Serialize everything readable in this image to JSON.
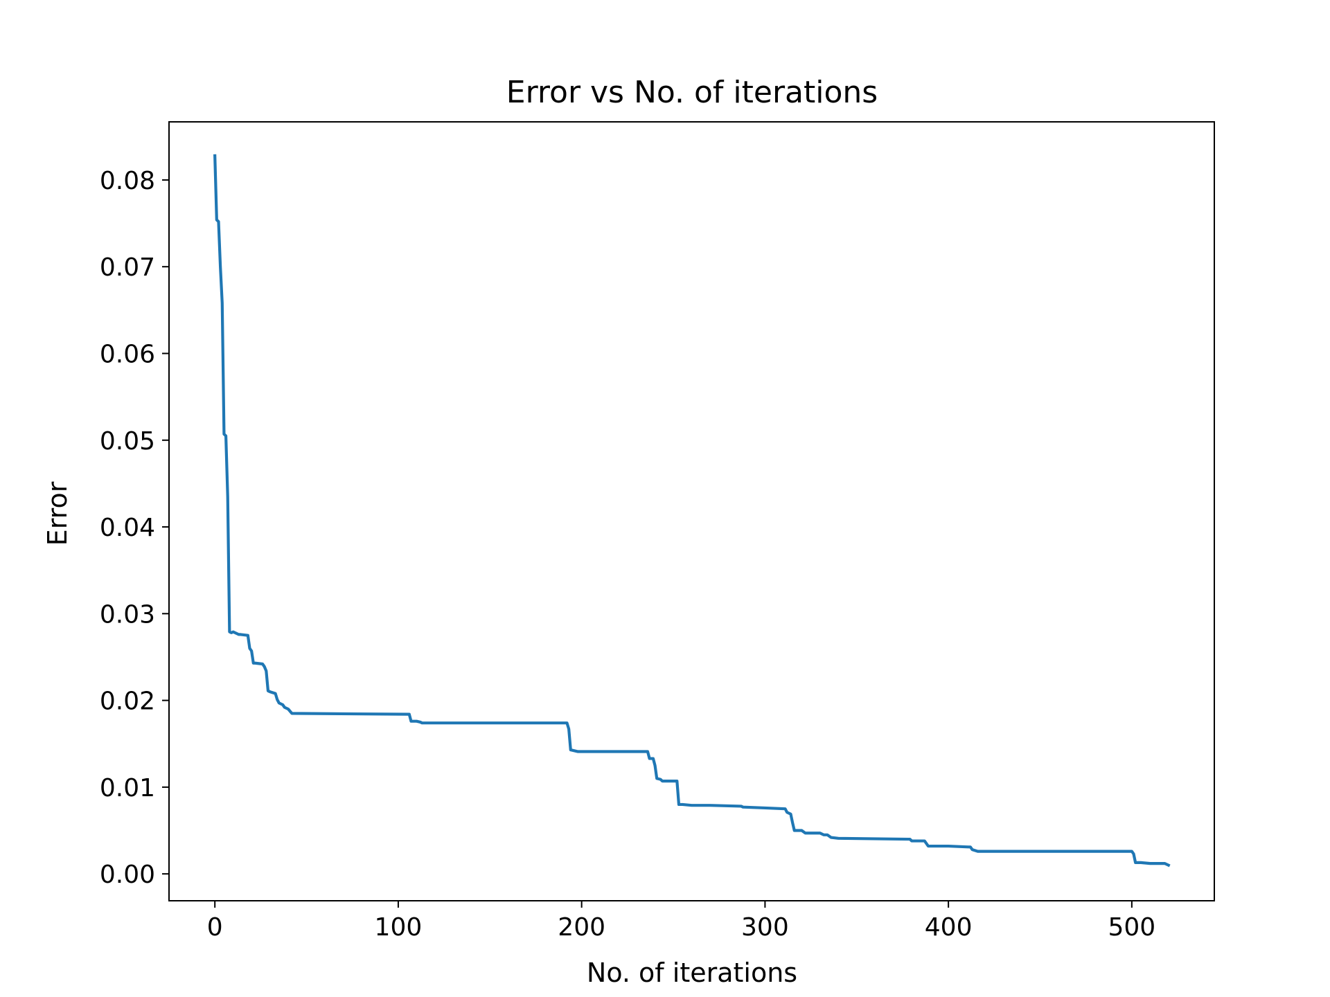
{
  "chart_data": {
    "type": "line",
    "title": "Error vs No. of iterations",
    "xlabel": "No. of iterations",
    "ylabel": "Error",
    "xlim": [
      -25,
      545
    ],
    "ylim": [
      -0.0031,
      0.0867
    ],
    "xticks": [
      0,
      100,
      200,
      300,
      400,
      500
    ],
    "xtick_labels": [
      "0",
      "100",
      "200",
      "300",
      "400",
      "500"
    ],
    "yticks": [
      0.0,
      0.01,
      0.02,
      0.03,
      0.04,
      0.05,
      0.06,
      0.07,
      0.08
    ],
    "ytick_labels": [
      "0.00",
      "0.01",
      "0.02",
      "0.03",
      "0.04",
      "0.05",
      "0.06",
      "0.07",
      "0.08"
    ],
    "grid": false,
    "series": [
      {
        "color": "#1f77b4",
        "x": [
          0,
          1,
          2,
          3,
          4,
          5,
          6,
          7,
          8,
          9,
          10,
          11,
          12,
          13,
          14,
          18,
          19,
          20,
          21,
          22,
          26,
          27,
          28,
          29,
          30,
          33,
          34,
          35,
          37,
          38,
          40,
          42,
          106,
          107,
          110,
          112,
          113,
          150,
          192,
          193,
          194,
          196,
          198,
          236,
          237,
          239,
          240,
          241,
          243,
          244,
          252,
          253,
          255,
          260,
          270,
          287,
          288,
          300,
          311,
          312,
          314,
          315,
          316,
          320,
          322,
          330,
          332,
          334,
          336,
          340,
          378,
          379,
          380,
          387,
          388,
          389,
          392,
          400,
          411,
          412,
          413,
          416,
          420,
          500,
          501,
          502,
          505,
          510,
          518,
          520
        ],
        "y": [
          0.0828,
          0.0754,
          0.0752,
          0.07,
          0.0658,
          0.0507,
          0.0505,
          0.0435,
          0.0279,
          0.0278,
          0.0279,
          0.0278,
          0.0277,
          0.0276,
          0.0276,
          0.0275,
          0.026,
          0.0257,
          0.0243,
          0.0243,
          0.0242,
          0.0239,
          0.0234,
          0.0211,
          0.021,
          0.0208,
          0.0201,
          0.0197,
          0.0195,
          0.0192,
          0.019,
          0.0185,
          0.0184,
          0.0176,
          0.0176,
          0.0175,
          0.0174,
          0.0174,
          0.0174,
          0.0167,
          0.0143,
          0.0142,
          0.0141,
          0.0141,
          0.0133,
          0.0133,
          0.0125,
          0.011,
          0.0109,
          0.0107,
          0.0107,
          0.008,
          0.008,
          0.0079,
          0.0079,
          0.0078,
          0.0077,
          0.0076,
          0.0075,
          0.0071,
          0.0069,
          0.0059,
          0.005,
          0.005,
          0.0047,
          0.0047,
          0.0045,
          0.0045,
          0.0042,
          0.0041,
          0.004,
          0.004,
          0.0038,
          0.0038,
          0.0035,
          0.0032,
          0.0032,
          0.0032,
          0.0031,
          0.0031,
          0.0028,
          0.0026,
          0.0026,
          0.0026,
          0.0023,
          0.0013,
          0.0013,
          0.0012,
          0.0012,
          0.001
        ]
      }
    ]
  }
}
